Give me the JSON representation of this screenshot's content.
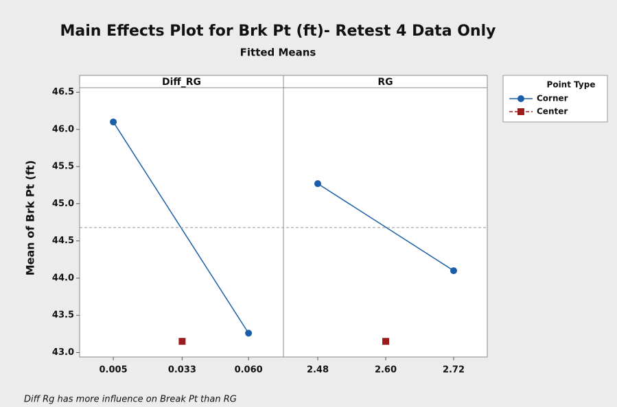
{
  "chart_data": {
    "type": "line",
    "title": "Main Effects Plot for Brk Pt (ft)- Retest 4 Data Only",
    "subtitle": "Fitted Means",
    "ylabel": "Mean of Brk Pt (ft)",
    "annotation": "Diff Rg has more influence on Break Pt than RG",
    "ylim": [
      42.94,
      46.56
    ],
    "yticks": [
      {
        "value": 43,
        "label": "43.0"
      },
      43.5,
      {
        "value": 44,
        "label": "44.0"
      },
      44.5,
      {
        "value": 45,
        "label": "45.0"
      },
      45.5,
      {
        "value": 46,
        "label": "46.0"
      },
      46.5
    ],
    "reference_line": 44.68,
    "legend": {
      "title": "Point Type",
      "corner": "right"
    },
    "panels": [
      {
        "title": "Diff_RG",
        "xlim": [
          -0.0087,
          0.0742
        ],
        "xticks": [
          0.005,
          0.033,
          {
            "value": 0.06,
            "label": "0.060"
          }
        ],
        "series": [
          {
            "name": "Corner",
            "color": "#1a5ea8",
            "x": [
              0.005,
              0.06
            ],
            "values": [
              46.1,
              43.26
            ]
          },
          {
            "name": "Center",
            "color": "#9b1c1c",
            "x": [
              0.033
            ],
            "values": [
              43.15
            ]
          }
        ]
      },
      {
        "title": "RG",
        "xlim": [
          2.4194,
          2.7794
        ],
        "xticks": [
          2.48,
          {
            "value": 2.6,
            "label": "2.60"
          },
          2.72
        ],
        "series": [
          {
            "name": "Corner",
            "color": "#1a5ea8",
            "x": [
              2.48,
              2.72
            ],
            "values": [
              45.27,
              44.1
            ]
          },
          {
            "name": "Center",
            "color": "#9b1c1c",
            "x": [
              2.6
            ],
            "values": [
              43.15
            ]
          }
        ]
      }
    ]
  }
}
